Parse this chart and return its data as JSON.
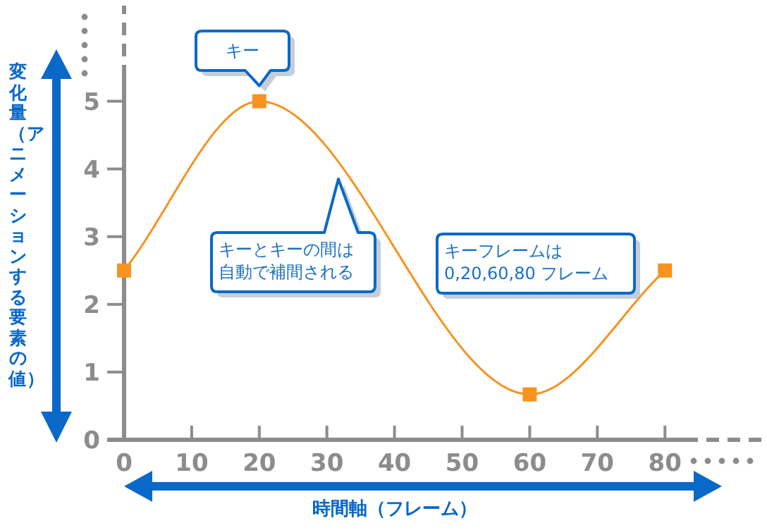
{
  "chart_data": {
    "type": "line",
    "x": [
      0,
      20,
      60,
      80
    ],
    "series": [
      {
        "color": "#f7931e",
        "values": [
          2.5,
          5,
          0.67,
          2.5
        ]
      }
    ],
    "marker": "square",
    "xlim": [
      0,
      83
    ],
    "ylim": [
      0,
      5.35
    ],
    "xticks": [
      0,
      10,
      20,
      30,
      40,
      50,
      60,
      70,
      80
    ],
    "yticks": [
      0,
      1,
      2,
      3,
      4,
      5
    ],
    "xlabel": "時間軸（フレーム）",
    "ylabel": "変化量（アニメーションする要素の値）",
    "annotations": [
      {
        "text": "キー",
        "x": 20,
        "y": 5
      },
      "キーとキーの間は自動で補間される",
      "キーフレームは 0,20,60,80 フレーム"
    ]
  }
}
